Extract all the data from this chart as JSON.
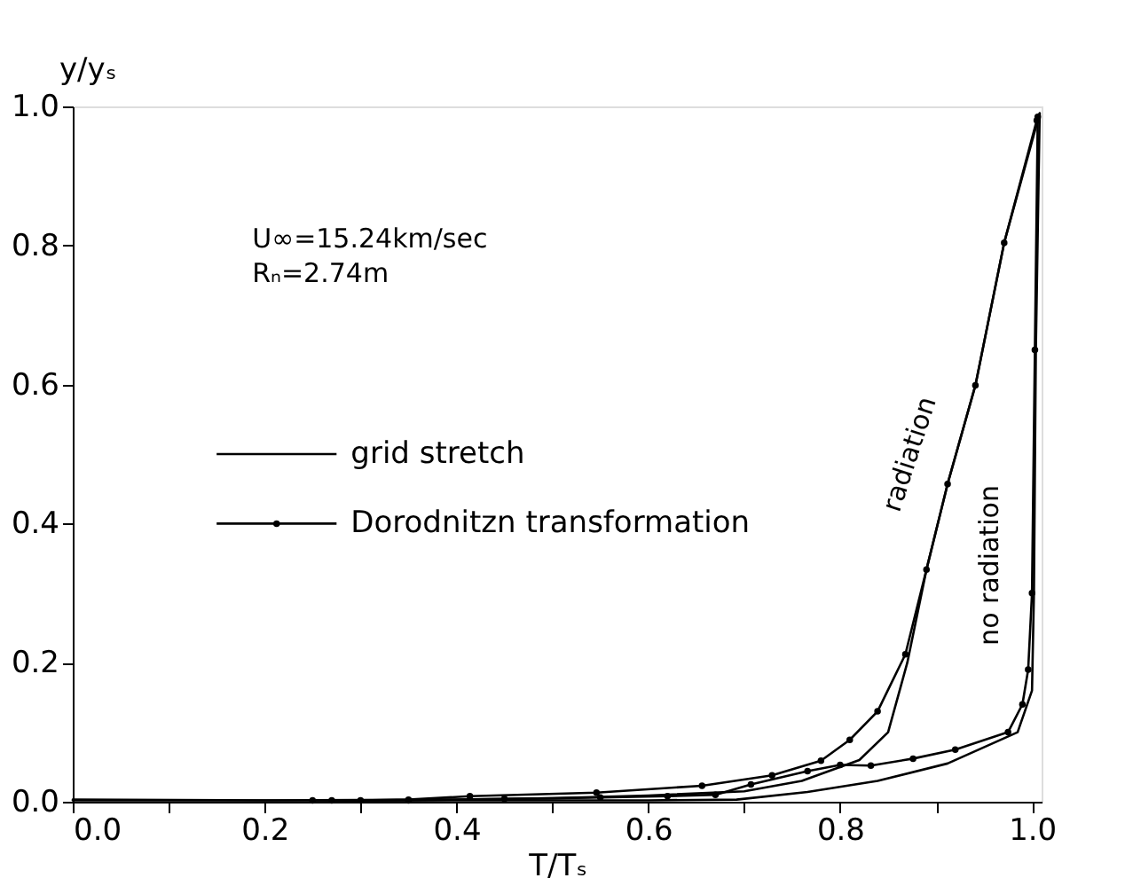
{
  "chart_data": {
    "type": "line",
    "xlabel": "T/Tₛ",
    "ylabel": "y/yₛ",
    "xlim": [
      0,
      1.01
    ],
    "ylim": [
      0,
      1.0
    ],
    "xticks": [
      {
        "value": 0,
        "label": "0.0"
      },
      {
        "value": 0.1,
        "label": null
      },
      {
        "value": 0.2,
        "label": "0.2"
      },
      {
        "value": 0.3,
        "label": null
      },
      {
        "value": 0.4,
        "label": "0.4"
      },
      {
        "value": 0.5,
        "label": null
      },
      {
        "value": 0.6,
        "label": "0.6"
      },
      {
        "value": 0.7,
        "label": null
      },
      {
        "value": 0.8,
        "label": "0.8"
      },
      {
        "value": 0.9,
        "label": null
      },
      {
        "value": 1.0,
        "label": "1.0"
      }
    ],
    "yticks": [
      {
        "value": 0,
        "label": "0.0"
      },
      {
        "value": 0.2,
        "label": "0.2"
      },
      {
        "value": 0.4,
        "label": "0.4"
      },
      {
        "value": 0.6,
        "label": "0.6"
      },
      {
        "value": 0.8,
        "label": "0.8"
      },
      {
        "value": 1.0,
        "label": "1.0"
      }
    ],
    "grid": false,
    "legend": "left",
    "line_style": "solid",
    "series": [
      {
        "name": "grid stretch",
        "color": "#000000",
        "marker": "none",
        "x": [
          0.0,
          0.2,
          0.4,
          0.5,
          0.6,
          0.7,
          0.76,
          0.82,
          0.85,
          0.87,
          0.89,
          0.912,
          0.941,
          0.971,
          1.008
        ],
        "values": [
          0.003,
          0.002,
          0.003,
          0.005,
          0.009,
          0.015,
          0.03,
          0.06,
          0.1,
          0.2,
          0.334,
          0.457,
          0.599,
          0.804,
          0.99
        ]
      },
      {
        "name": "Dorodnitzn transformation",
        "color": "#000000",
        "marker": "circle",
        "x": [
          0.25,
          0.3,
          0.35,
          0.414,
          0.546,
          0.656,
          0.729,
          0.78,
          0.81,
          0.839,
          0.868,
          0.89,
          0.912,
          0.941,
          0.971,
          1.005
        ],
        "values": [
          0.002,
          0.002,
          0.003,
          0.008,
          0.013,
          0.023,
          0.038,
          0.059,
          0.089,
          0.13,
          0.212,
          0.334,
          0.457,
          0.599,
          0.804,
          0.98
        ]
      },
      {
        "color": "#000000",
        "marker": "none",
        "x": [
          0.0,
          0.4,
          0.6,
          0.692,
          0.766,
          0.839,
          0.912,
          0.985,
          1.0,
          1.002,
          1.004,
          1.008
        ],
        "values": [
          0.002,
          0.002,
          0.002,
          0.003,
          0.014,
          0.03,
          0.055,
          0.1,
          0.16,
          0.3,
          0.65,
          0.99
        ]
      },
      {
        "color": "#000000",
        "marker": "circle",
        "x": [
          0.27,
          0.35,
          0.45,
          0.55,
          0.62,
          0.67,
          0.707,
          0.766,
          0.8,
          0.832,
          0.876,
          0.92,
          0.975,
          0.99,
          0.996,
          1.0,
          1.003,
          1.006
        ],
        "values": [
          0.002,
          0.002,
          0.004,
          0.006,
          0.008,
          0.01,
          0.025,
          0.044,
          0.053,
          0.052,
          0.062,
          0.075,
          0.1,
          0.14,
          0.19,
          0.3,
          0.65,
          0.985
        ]
      }
    ],
    "annotations": [
      "U∞=15.24km/sec",
      "Rₙ=2.74m",
      "radiation",
      "no radiation"
    ]
  }
}
